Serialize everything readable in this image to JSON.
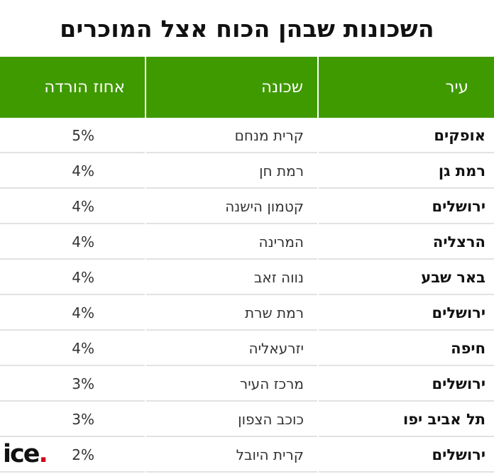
{
  "title": "השכונות שבהן הכוח אצל המוכרים",
  "table": {
    "headers": {
      "city": "עיר",
      "neighborhood": "שכונה",
      "discount": "אחוז הורדה"
    },
    "rows": [
      {
        "city": "אופקים",
        "neighborhood": "קרית מנחם",
        "discount": "5%"
      },
      {
        "city": "רמת גן",
        "neighborhood": "רמת חן",
        "discount": "4%"
      },
      {
        "city": "ירושלים",
        "neighborhood": "קטמון הישנה",
        "discount": "4%"
      },
      {
        "city": "הרצליה",
        "neighborhood": "המרינה",
        "discount": "4%"
      },
      {
        "city": "באר שבע",
        "neighborhood": "נווה זאב",
        "discount": "4%"
      },
      {
        "city": "ירושלים",
        "neighborhood": "רמת שרת",
        "discount": "4%"
      },
      {
        "city": "חיפה",
        "neighborhood": "יזרעאליה",
        "discount": "4%"
      },
      {
        "city": "ירושלים",
        "neighborhood": "מרכז העיר",
        "discount": "3%"
      },
      {
        "city": "תל אביב יפו",
        "neighborhood": "כוכב הצפון",
        "discount": "3%"
      },
      {
        "city": "ירושלים",
        "neighborhood": "קרית היובל",
        "discount": "2%"
      }
    ]
  },
  "logo": {
    "text": "ice",
    "dot": "."
  },
  "colors": {
    "header_bg": "#3f9a00",
    "header_text": "#ffffff",
    "logo_dot": "#d0021b"
  }
}
